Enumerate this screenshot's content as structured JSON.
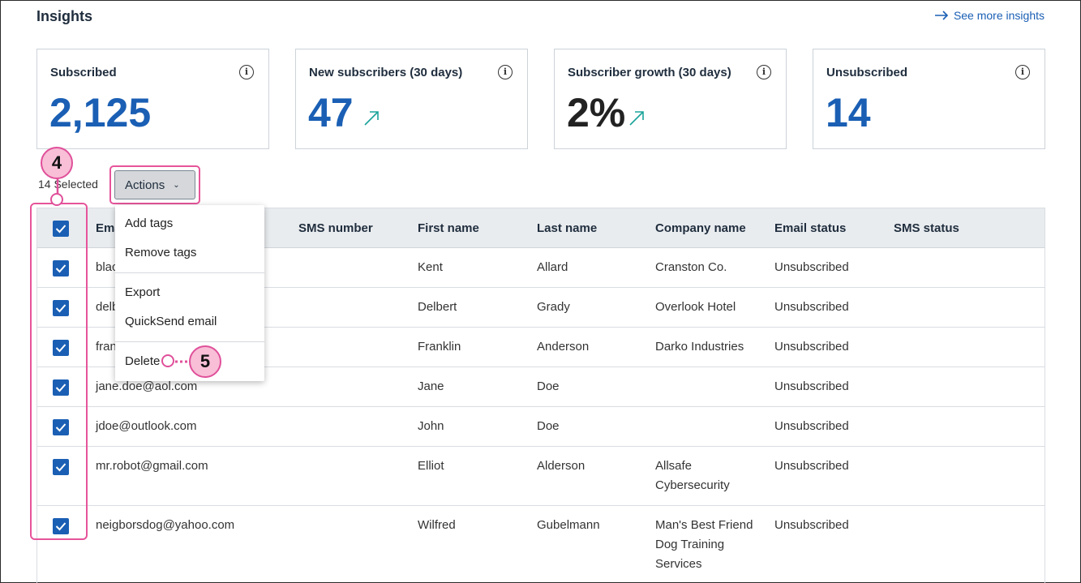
{
  "header": {
    "title": "Insights",
    "see_more": "See more insights"
  },
  "cards": [
    {
      "label": "Subscribed",
      "value": "2,125"
    },
    {
      "label": "New subscribers (30 days)",
      "value": "47"
    },
    {
      "label": "Subscriber growth (30 days)",
      "value": "2%"
    },
    {
      "label": "Unsubscribed",
      "value": "14"
    }
  ],
  "toolbar": {
    "selected_count": "14 Selected",
    "actions_label": "Actions"
  },
  "annotations": {
    "step4": "4",
    "step5": "5"
  },
  "menu": {
    "add_tags": "Add tags",
    "remove_tags": "Remove tags",
    "export": "Export",
    "quicksend": "QuickSend email",
    "delete": "Delete"
  },
  "table": {
    "columns": [
      "Email",
      "SMS number",
      "First name",
      "Last name",
      "Company name",
      "Email status",
      "SMS status"
    ],
    "rows": [
      {
        "email": "black",
        "sms": "",
        "first": "Kent",
        "last": "Allard",
        "company": "Cranston Co.",
        "email_status": "Unsubscribed",
        "sms_status": ""
      },
      {
        "email": "delb",
        "sms": "",
        "first": "Delbert",
        "last": "Grady",
        "company": "Overlook Hotel",
        "email_status": "Unsubscribed",
        "sms_status": ""
      },
      {
        "email": "frank",
        "sms": "",
        "first": "Franklin",
        "last": "Anderson",
        "company": "Darko Industries",
        "email_status": "Unsubscribed",
        "sms_status": ""
      },
      {
        "email": "jane.doe@aol.com",
        "sms": "",
        "first": "Jane",
        "last": "Doe",
        "company": "",
        "email_status": "Unsubscribed",
        "sms_status": ""
      },
      {
        "email": "jdoe@outlook.com",
        "sms": "",
        "first": "John",
        "last": "Doe",
        "company": "",
        "email_status": "Unsubscribed",
        "sms_status": ""
      },
      {
        "email": "mr.robot@gmail.com",
        "sms": "",
        "first": "Elliot",
        "last": "Alderson",
        "company": "Allsafe\nCybersecurity",
        "email_status": "Unsubscribed",
        "sms_status": ""
      },
      {
        "email": "neigborsdog@yahoo.com",
        "sms": "",
        "first": "Wilfred",
        "last": "Gubelmann",
        "company": "Man's Best Friend\nDog Training\nServices",
        "email_status": "Unsubscribed",
        "sms_status": ""
      }
    ]
  },
  "colors": {
    "accent": "#1a5fb4",
    "highlight": "#e6549a",
    "badge_fill": "#f8bfd7",
    "trend": "#1aa39a"
  },
  "icons": {
    "see_more": "arrow-right-icon",
    "info": "info-icon",
    "trend": "trend-up-icon",
    "chevron": "chevron-down-icon",
    "checkbox": "check-icon"
  }
}
